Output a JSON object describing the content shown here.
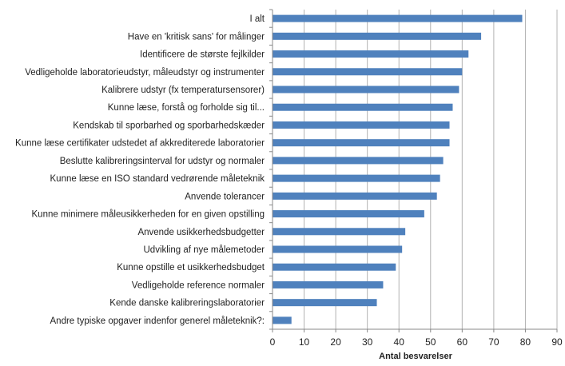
{
  "chart_data": {
    "type": "bar",
    "orientation": "horizontal",
    "categories": [
      "I alt",
      "Have en 'kritisk sans' for målinger",
      "Identificere de største fejlkilder",
      "Vedligeholde laboratorieudstyr, måleudstyr og instrumenter",
      "Kalibrere udstyr (fx temperatursensorer)",
      "Kunne læse, forstå og forholde sig til...",
      "Kendskab til sporbarhed og sporbarhedskæder",
      "Kunne læse certifikater udstedet af akkrediterede laboratorier",
      "Beslutte kalibreringsinterval for udstyr og normaler",
      "Kunne læse en ISO standard vedrørende måleteknik",
      "Anvende tolerancer",
      "Kunne minimere måleusikkerheden for en given opstilling",
      "Anvende usikkerhedsbudgetter",
      "Udvikling af nye målemetoder",
      "Kunne opstille et usikkerhedsbudget",
      "Vedligeholde reference normaler",
      "Kende danske kalibreringslaboratorier",
      "Andre typiske opgaver indenfor generel måleteknik?:"
    ],
    "values": [
      79,
      66,
      62,
      60,
      59,
      57,
      56,
      56,
      54,
      53,
      52,
      48,
      42,
      41,
      39,
      35,
      33,
      6
    ],
    "xlabel": "Antal besvarelser",
    "xlim": [
      0,
      90
    ],
    "xticks": [
      "0",
      "10",
      "20",
      "30",
      "40",
      "50",
      "60",
      "70",
      "80",
      "90"
    ],
    "grid": "vertical",
    "bar_color": "#4f81bd",
    "grid_color": "#b3b3b3"
  }
}
